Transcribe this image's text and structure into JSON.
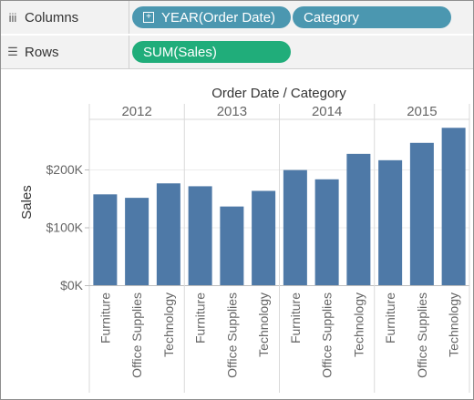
{
  "shelves": {
    "columns": {
      "icon": "columns-icon",
      "glyph": "iii",
      "label": "Columns",
      "pills": [
        {
          "label": "YEAR(Order Date)",
          "has_plus": true
        },
        {
          "label": "Category",
          "has_plus": false
        }
      ]
    },
    "rows": {
      "icon": "rows-icon",
      "glyph": "☰",
      "label": "Rows",
      "pills": [
        {
          "label": "SUM(Sales)",
          "has_plus": false
        }
      ]
    }
  },
  "colors": {
    "bar": "#4e79a7",
    "pill_dimension": "#4b97b0",
    "pill_measure": "#20ad7a"
  },
  "chart_data": {
    "type": "bar",
    "title": "Order Date / Category",
    "ylabel": "Sales",
    "ylim": [
      0,
      300000
    ],
    "yticks": [
      0,
      100000,
      200000
    ],
    "ytick_labels": [
      "$0K",
      "$100K",
      "$200K"
    ],
    "grid": true,
    "groups": [
      {
        "label": "2012",
        "categories": [
          "Furniture",
          "Office Supplies",
          "Technology"
        ],
        "values": [
          157000,
          151000,
          176000
        ]
      },
      {
        "label": "2013",
        "categories": [
          "Furniture",
          "Office Supplies",
          "Technology"
        ],
        "values": [
          171000,
          136000,
          163000
        ]
      },
      {
        "label": "2014",
        "categories": [
          "Furniture",
          "Office Supplies",
          "Technology"
        ],
        "values": [
          199000,
          183000,
          227000
        ]
      },
      {
        "label": "2015",
        "categories": [
          "Furniture",
          "Office Supplies",
          "Technology"
        ],
        "values": [
          216000,
          246000,
          272000
        ]
      }
    ]
  }
}
